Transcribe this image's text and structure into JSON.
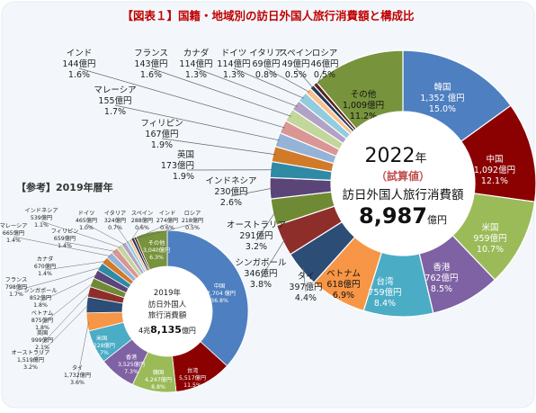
{
  "title": "【図表１】国籍・地域別の訪日外国人旅行消費額と構成比",
  "chart_data": [
    {
      "type": "pie",
      "variant": "donut",
      "center": {
        "year": "2022",
        "year_unit": "年",
        "note": "（試算値）",
        "label": "訪日外国人旅行消費額",
        "total": "8,987",
        "total_unit": "億円"
      },
      "slices": [
        {
          "name": "韓国",
          "amount": "1,352 億円",
          "pct": "15.0%",
          "value": 1352,
          "color": "#4e7fc0"
        },
        {
          "name": "中国",
          "amount": "1,092億円",
          "pct": "12.1%",
          "value": 1092,
          "color": "#8b0000"
        },
        {
          "name": "米国",
          "amount": "959億円",
          "pct": "10.7%",
          "value": 959,
          "color": "#9bbb59"
        },
        {
          "name": "香港",
          "amount": "762億円",
          "pct": "8.5%",
          "value": 762,
          "color": "#7f62a3"
        },
        {
          "name": "台湾",
          "amount": "759億円",
          "pct": "8.4%",
          "value": 759,
          "color": "#4bacc6"
        },
        {
          "name": "ベトナム",
          "amount": "618億円",
          "pct": "6.9%",
          "value": 618,
          "color": "#f79646"
        },
        {
          "name": "タイ",
          "amount": "397億円",
          "pct": "4.4%",
          "value": 397,
          "color": "#2c4d75"
        },
        {
          "name": "シンガポール",
          "amount": "346億円",
          "pct": "3.8%",
          "value": 346,
          "color": "#8e2e2b"
        },
        {
          "name": "オーストラリア",
          "amount": "291億円",
          "pct": "3.2%",
          "value": 291,
          "color": "#6f8a35"
        },
        {
          "name": "インドネシア",
          "amount": "230億円",
          "pct": "2.6%",
          "value": 230,
          "color": "#5b4478"
        },
        {
          "name": "英国",
          "amount": "173億円",
          "pct": "1.9%",
          "value": 173,
          "color": "#2f8aa6"
        },
        {
          "name": "フィリピン",
          "amount": "167億円",
          "pct": "1.9%",
          "value": 167,
          "color": "#d17a2a"
        },
        {
          "name": "マレーシア",
          "amount": "155億円",
          "pct": "1.7%",
          "value": 155,
          "color": "#95b3d7"
        },
        {
          "name": "インド",
          "amount": "144億円",
          "pct": "1.6%",
          "value": 144,
          "color": "#d99694"
        },
        {
          "name": "フランス",
          "amount": "143億円",
          "pct": "1.6%",
          "value": 143,
          "color": "#c3d69b"
        },
        {
          "name": "カナダ",
          "amount": "114億円",
          "pct": "1.3%",
          "value": 114,
          "color": "#b3a2c7"
        },
        {
          "name": "ドイツ",
          "amount": "114億円",
          "pct": "1.3%",
          "value": 114,
          "color": "#93cddd"
        },
        {
          "name": "イタリア",
          "amount": "69億円",
          "pct": "0.8%",
          "value": 69,
          "color": "#fac090"
        },
        {
          "name": "スペイン",
          "amount": "49億円",
          "pct": "0.5%",
          "value": 49,
          "color": "#1f3a5c"
        },
        {
          "name": "ロシア",
          "amount": "46億円",
          "pct": "0.5%",
          "value": 46,
          "color": "#5a1e1c"
        },
        {
          "name": "その他",
          "amount": "1,009億円",
          "pct": "11.2%",
          "value": 1009,
          "color": "#77933c"
        }
      ]
    },
    {
      "type": "pie",
      "variant": "donut",
      "heading": "【参考】2019年暦年",
      "center": {
        "year": "2019年",
        "label1": "訪日外国人",
        "label2": "旅行消費額",
        "total_prefix": "4兆",
        "total": "8,135",
        "total_unit": "億円"
      },
      "slices": [
        {
          "name": "中国",
          "amount": "17,704 億円",
          "pct": "36.8%",
          "value": 17704,
          "color": "#4e7fc0"
        },
        {
          "name": "台湾",
          "amount": "5,517億円",
          "pct": "11.5%",
          "value": 5517,
          "color": "#8b0000"
        },
        {
          "name": "韓国",
          "amount": "4,247億円",
          "pct": "8.8%",
          "value": 4247,
          "color": "#9bbb59"
        },
        {
          "name": "香港",
          "amount": "3,525億円",
          "pct": "7.3%",
          "value": 3525,
          "color": "#7f62a3"
        },
        {
          "name": "米国",
          "amount": "3,228億円",
          "pct": "6.7%",
          "value": 3228,
          "color": "#4bacc6"
        },
        {
          "name": "タイ",
          "amount": "1,732億円",
          "pct": "3.6%",
          "value": 1732,
          "color": "#f79646"
        },
        {
          "name": "オーストラリア",
          "amount": "1,519億円",
          "pct": "3.2%",
          "value": 1519,
          "color": "#2c4d75"
        },
        {
          "name": "英国",
          "amount": "999億円",
          "pct": "2.1%",
          "value": 999,
          "color": "#8e2e2b"
        },
        {
          "name": "ベトナム",
          "amount": "875億円",
          "pct": "1.8%",
          "value": 875,
          "color": "#6f8a35"
        },
        {
          "name": "シンガポール",
          "amount": "852億円",
          "pct": "1.8%",
          "value": 852,
          "color": "#5b4478"
        },
        {
          "name": "フランス",
          "amount": "798億円",
          "pct": "1.7%",
          "value": 798,
          "color": "#2f8aa6"
        },
        {
          "name": "カナダ",
          "amount": "670億円",
          "pct": "1.4%",
          "value": 670,
          "color": "#d17a2a"
        },
        {
          "name": "マレーシア",
          "amount": "665億円",
          "pct": "1.4%",
          "value": 665,
          "color": "#95b3d7"
        },
        {
          "name": "フィリピン",
          "amount": "659億円",
          "pct": "1.4%",
          "value": 659,
          "color": "#d99694"
        },
        {
          "name": "インドネシア",
          "amount": "539億円",
          "pct": "1.1%",
          "value": 539,
          "color": "#c3d69b"
        },
        {
          "name": "ドイツ",
          "amount": "465億円",
          "pct": "1.0%",
          "value": 465,
          "color": "#b3a2c7"
        },
        {
          "name": "イタリア",
          "amount": "324億円",
          "pct": "0.7%",
          "value": 324,
          "color": "#93cddd"
        },
        {
          "name": "スペイン",
          "amount": "288億円",
          "pct": "0.6%",
          "value": 288,
          "color": "#fac090"
        },
        {
          "name": "インド",
          "amount": "274億円",
          "pct": "0.6%",
          "value": 274,
          "color": "#1f3a5c"
        },
        {
          "name": "ロシア",
          "amount": "218億円",
          "pct": "0.5%",
          "value": 218,
          "color": "#5a1e1c"
        },
        {
          "name": "その他",
          "amount": "3,040億円",
          "pct": "6.3%",
          "value": 3040,
          "color": "#77933c"
        }
      ]
    }
  ],
  "colors": {
    "frame_bg": "#f3f7fb",
    "title_red": "#c00000",
    "ring_fill": "#ffffff"
  }
}
